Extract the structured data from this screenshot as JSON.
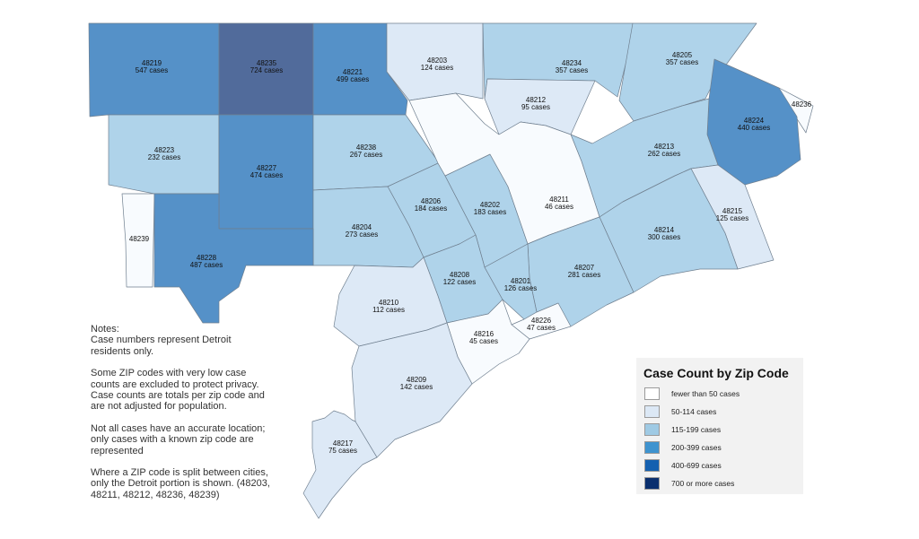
{
  "colors": {
    "fewer_than_50": "#f8fbfe",
    "c50_114": "#dde9f6",
    "c115_199": "#afd3ea",
    "c200_299": "#7eb8dd",
    "c400_699": "#5591c8",
    "c700_plus": "#516b9b",
    "border": "#6f7f8f"
  },
  "legend": {
    "title": "Case Count by Zip Code",
    "items": [
      {
        "label": "fewer than 50 cases",
        "color": "#ffffff"
      },
      {
        "label": "50-114 cases",
        "color": "#dce8f5"
      },
      {
        "label": "115-199 cases",
        "color": "#9fcae4"
      },
      {
        "label": "200-399 cases",
        "color": "#3e93cf"
      },
      {
        "label": "400-699 cases",
        "color": "#1460b0"
      },
      {
        "label": "700 or more cases",
        "color": "#0a2f6e"
      }
    ]
  },
  "notes": {
    "heading": "Notes:",
    "p1": "Case numbers represent Detroit residents only.",
    "p2": "Some ZIP codes with very low case counts are excluded to protect privacy. Case counts are totals per zip code and are not adjusted for population.",
    "p3": "Not all cases have an accurate location; only cases with a known zip code are represented",
    "p4": "Where a ZIP code is split between cities, only the Detroit portion is shown. (48203, 48211, 48212, 48236, 48239)"
  },
  "zips": {
    "z48219": {
      "zip": "48219",
      "cases": "547 cases"
    },
    "z48235": {
      "zip": "48235",
      "cases": "724 cases"
    },
    "z48221": {
      "zip": "48221",
      "cases": "499 cases"
    },
    "z48203": {
      "zip": "48203",
      "cases": "124 cases"
    },
    "z48234": {
      "zip": "48234",
      "cases": "357 cases"
    },
    "z48205": {
      "zip": "48205",
      "cases": "357 cases"
    },
    "z48212": {
      "zip": "48212",
      "cases": "95 cases"
    },
    "z48236": {
      "zip": "48236",
      "cases": ""
    },
    "z48224": {
      "zip": "48224",
      "cases": "440 cases"
    },
    "z48223": {
      "zip": "48223",
      "cases": "232 cases"
    },
    "z48227": {
      "zip": "48227",
      "cases": "474 cases"
    },
    "z48238": {
      "zip": "48238",
      "cases": "267 cases"
    },
    "z48213": {
      "zip": "48213",
      "cases": "262 cases"
    },
    "z48206": {
      "zip": "48206",
      "cases": "184 cases"
    },
    "z48202": {
      "zip": "48202",
      "cases": "183 cases"
    },
    "z48211": {
      "zip": "48211",
      "cases": "46 cases"
    },
    "z48215": {
      "zip": "48215",
      "cases": "125 cases"
    },
    "z48239": {
      "zip": "48239",
      "cases": ""
    },
    "z48204": {
      "zip": "48204",
      "cases": "273 cases"
    },
    "z48214": {
      "zip": "48214",
      "cases": "300 cases"
    },
    "z48228": {
      "zip": "48228",
      "cases": "487 cases"
    },
    "z48207": {
      "zip": "48207",
      "cases": "281 cases"
    },
    "z48208": {
      "zip": "48208",
      "cases": "122 cases"
    },
    "z48201": {
      "zip": "48201",
      "cases": "126 cases"
    },
    "z48210": {
      "zip": "48210",
      "cases": "112 cases"
    },
    "z48226": {
      "zip": "48226",
      "cases": "47 cases"
    },
    "z48216": {
      "zip": "48216",
      "cases": "45 cases"
    },
    "z48209": {
      "zip": "48209",
      "cases": "142 cases"
    },
    "z48217": {
      "zip": "48217",
      "cases": "75 cases"
    }
  }
}
